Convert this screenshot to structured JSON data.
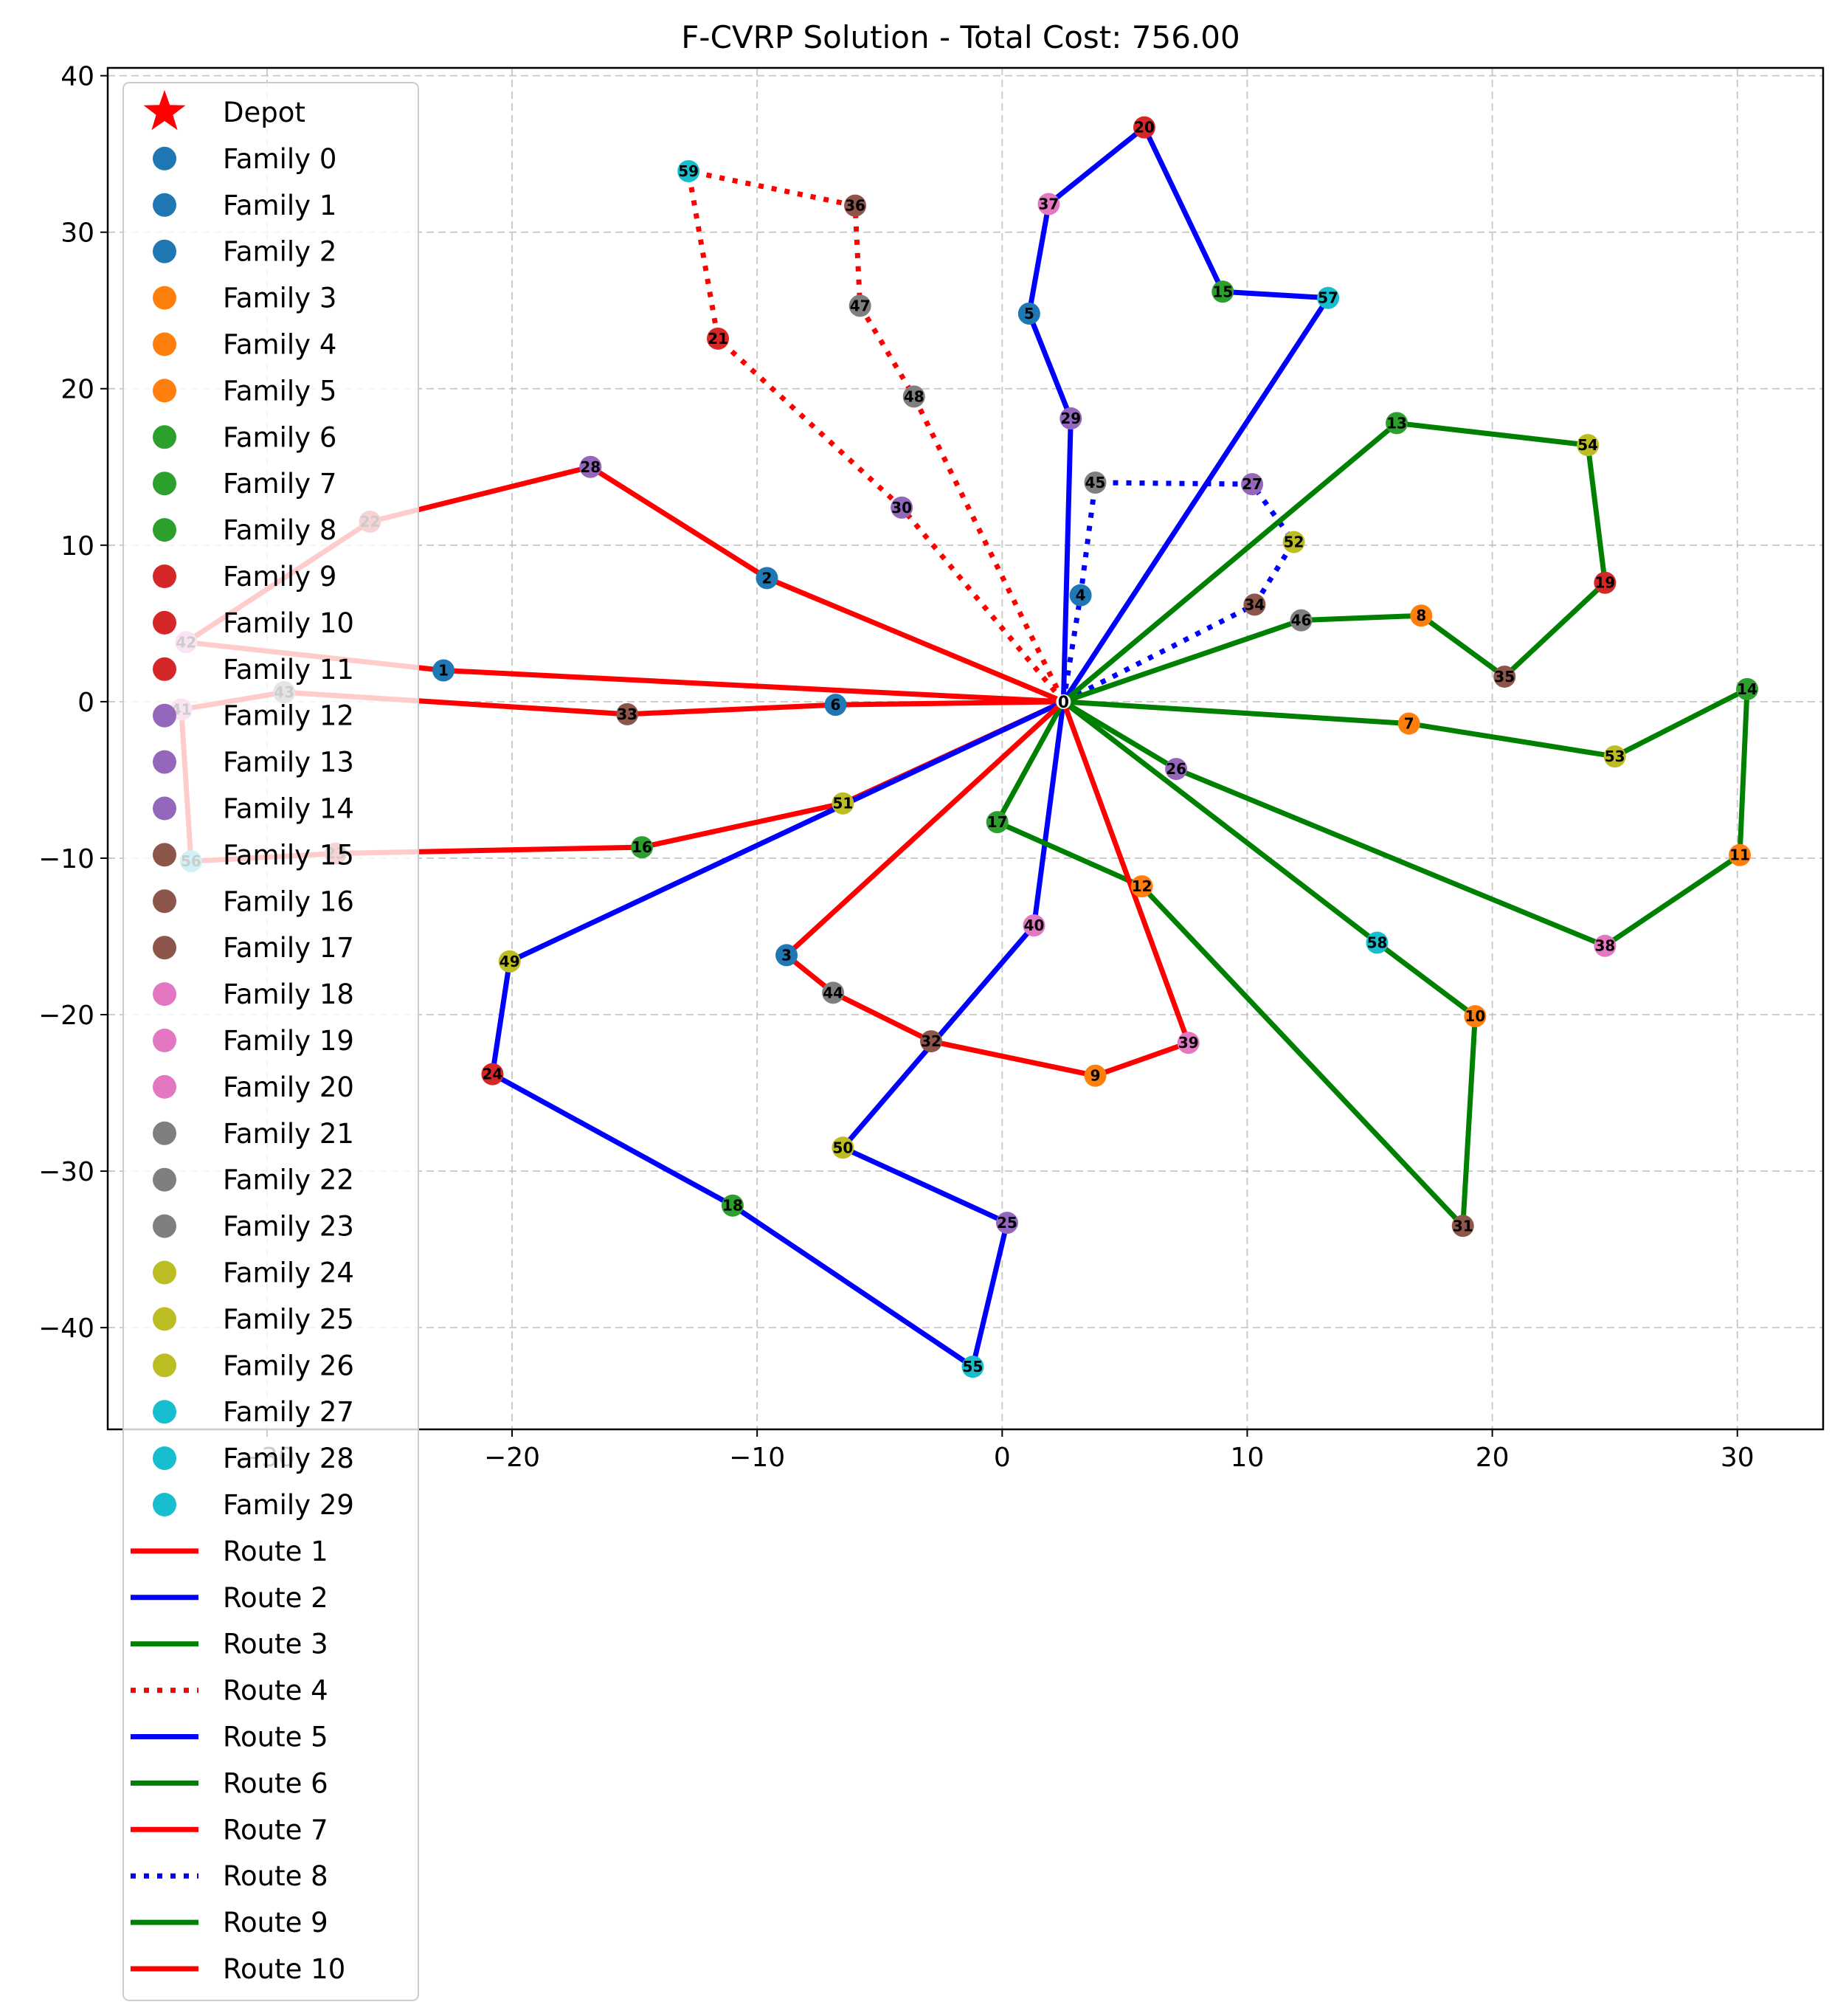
{
  "chart_data": {
    "type": "scatter",
    "title": "F-CVRP Solution - Total Cost: 756.00",
    "xlabel": "",
    "ylabel": "",
    "xlim": [
      -36.5,
      33.5
    ],
    "ylim": [
      -46.5,
      40.5
    ],
    "xticks": [
      -30,
      -20,
      -10,
      0,
      10,
      20,
      30
    ],
    "yticks": [
      -40,
      -30,
      -20,
      -10,
      0,
      10,
      20,
      30,
      40
    ],
    "tick_labels_x": [
      "−30",
      "−20",
      "−10",
      "0",
      "10",
      "20",
      "30"
    ],
    "tick_labels_y": [
      "−40",
      "−30",
      "−20",
      "−10",
      "0",
      "10",
      "20",
      "30",
      "40"
    ],
    "grid": true,
    "legend_position": "top-left",
    "depot": {
      "label": "Depot",
      "x": 2.5,
      "y": 0,
      "color": "#ff0000"
    },
    "nodes": [
      {
        "id": 1,
        "x": -22.8,
        "y": 2.0,
        "color": "#1f77b4"
      },
      {
        "id": 2,
        "x": -9.6,
        "y": 7.9,
        "color": "#1f77b4"
      },
      {
        "id": 3,
        "x": -8.8,
        "y": -16.2,
        "color": "#1f77b4"
      },
      {
        "id": 4,
        "x": 3.2,
        "y": 6.8,
        "color": "#1f77b4"
      },
      {
        "id": 5,
        "x": 1.1,
        "y": 24.8,
        "color": "#1f77b4"
      },
      {
        "id": 6,
        "x": -6.8,
        "y": -0.2,
        "color": "#1f77b4"
      },
      {
        "id": 7,
        "x": 16.6,
        "y": -1.4,
        "color": "#ff7f0e"
      },
      {
        "id": 8,
        "x": 17.1,
        "y": 5.5,
        "color": "#ff7f0e"
      },
      {
        "id": 9,
        "x": 3.8,
        "y": -23.9,
        "color": "#ff7f0e"
      },
      {
        "id": 10,
        "x": 19.3,
        "y": -20.1,
        "color": "#ff7f0e"
      },
      {
        "id": 11,
        "x": 30.1,
        "y": -9.8,
        "color": "#ff7f0e"
      },
      {
        "id": 12,
        "x": 5.7,
        "y": -11.8,
        "color": "#ff7f0e"
      },
      {
        "id": 13,
        "x": 16.1,
        "y": 17.8,
        "color": "#2ca02c"
      },
      {
        "id": 14,
        "x": 30.4,
        "y": 0.8,
        "color": "#2ca02c"
      },
      {
        "id": 15,
        "x": 9.0,
        "y": 26.2,
        "color": "#2ca02c"
      },
      {
        "id": 16,
        "x": -14.7,
        "y": -9.3,
        "color": "#2ca02c"
      },
      {
        "id": 17,
        "x": -0.2,
        "y": -7.7,
        "color": "#2ca02c"
      },
      {
        "id": 18,
        "x": -11.0,
        "y": -32.2,
        "color": "#2ca02c"
      },
      {
        "id": 19,
        "x": 24.6,
        "y": 7.6,
        "color": "#d62728"
      },
      {
        "id": 20,
        "x": 5.8,
        "y": 36.7,
        "color": "#d62728"
      },
      {
        "id": 21,
        "x": -11.6,
        "y": 23.2,
        "color": "#d62728"
      },
      {
        "id": 22,
        "x": -25.8,
        "y": 11.5,
        "color": "#d62728"
      },
      {
        "id": 23,
        "x": -27.2,
        "y": -9.7,
        "color": "#d62728"
      },
      {
        "id": 24,
        "x": -20.8,
        "y": -23.8,
        "color": "#d62728"
      },
      {
        "id": 25,
        "x": 0.2,
        "y": -33.3,
        "color": "#9467bd"
      },
      {
        "id": 26,
        "x": 7.1,
        "y": -4.3,
        "color": "#9467bd"
      },
      {
        "id": 27,
        "x": 10.2,
        "y": 13.9,
        "color": "#9467bd"
      },
      {
        "id": 28,
        "x": -16.8,
        "y": 15.0,
        "color": "#9467bd"
      },
      {
        "id": 29,
        "x": 2.8,
        "y": 18.1,
        "color": "#9467bd"
      },
      {
        "id": 30,
        "x": -4.1,
        "y": 12.4,
        "color": "#9467bd"
      },
      {
        "id": 31,
        "x": 18.8,
        "y": -33.5,
        "color": "#8c564b"
      },
      {
        "id": 32,
        "x": -2.9,
        "y": -21.7,
        "color": "#8c564b"
      },
      {
        "id": 33,
        "x": -15.3,
        "y": -0.8,
        "color": "#8c564b"
      },
      {
        "id": 34,
        "x": 10.3,
        "y": 6.2,
        "color": "#8c564b"
      },
      {
        "id": 35,
        "x": 20.5,
        "y": 1.6,
        "color": "#8c564b"
      },
      {
        "id": 36,
        "x": -6.0,
        "y": 31.7,
        "color": "#8c564b"
      },
      {
        "id": 37,
        "x": 1.9,
        "y": 31.8,
        "color": "#e377c2"
      },
      {
        "id": 38,
        "x": 24.6,
        "y": -15.6,
        "color": "#e377c2"
      },
      {
        "id": 39,
        "x": 7.6,
        "y": -21.8,
        "color": "#e377c2"
      },
      {
        "id": 40,
        "x": 1.3,
        "y": -14.3,
        "color": "#e377c2"
      },
      {
        "id": 41,
        "x": -33.5,
        "y": -0.5,
        "color": "#e377c2"
      },
      {
        "id": 42,
        "x": -33.3,
        "y": 3.8,
        "color": "#e377c2"
      },
      {
        "id": 43,
        "x": -29.3,
        "y": 0.6,
        "color": "#7f7f7f"
      },
      {
        "id": 44,
        "x": -6.9,
        "y": -18.6,
        "color": "#7f7f7f"
      },
      {
        "id": 45,
        "x": 3.8,
        "y": 14.0,
        "color": "#7f7f7f"
      },
      {
        "id": 46,
        "x": 12.2,
        "y": 5.2,
        "color": "#7f7f7f"
      },
      {
        "id": 47,
        "x": -5.8,
        "y": 25.3,
        "color": "#7f7f7f"
      },
      {
        "id": 48,
        "x": -3.6,
        "y": 19.5,
        "color": "#7f7f7f"
      },
      {
        "id": 49,
        "x": -20.1,
        "y": -16.6,
        "color": "#bcbd22"
      },
      {
        "id": 50,
        "x": -6.5,
        "y": -28.5,
        "color": "#bcbd22"
      },
      {
        "id": 51,
        "x": -6.5,
        "y": -6.5,
        "color": "#bcbd22"
      },
      {
        "id": 52,
        "x": 11.9,
        "y": 10.2,
        "color": "#bcbd22"
      },
      {
        "id": 53,
        "x": 25.0,
        "y": -3.5,
        "color": "#bcbd22"
      },
      {
        "id": 54,
        "x": 23.9,
        "y": 16.4,
        "color": "#bcbd22"
      },
      {
        "id": 55,
        "x": -1.2,
        "y": -42.5,
        "color": "#17becf"
      },
      {
        "id": 56,
        "x": -33.1,
        "y": -10.2,
        "color": "#17becf"
      },
      {
        "id": 57,
        "x": 13.3,
        "y": 25.8,
        "color": "#17becf"
      },
      {
        "id": 58,
        "x": 15.3,
        "y": -15.4,
        "color": "#17becf"
      },
      {
        "id": 59,
        "x": -12.8,
        "y": 33.9,
        "color": "#17becf"
      }
    ],
    "routes": [
      {
        "name": "Route 1",
        "color": "#ff0000",
        "style": "solid",
        "stops": [
          0,
          6,
          33,
          43,
          41,
          56,
          23,
          16,
          51,
          0
        ]
      },
      {
        "name": "Route 2",
        "color": "#0000ff",
        "style": "solid",
        "stops": [
          0,
          49,
          24,
          18,
          55,
          25,
          50,
          40,
          0
        ]
      },
      {
        "name": "Route 3",
        "color": "#008000",
        "style": "solid",
        "stops": [
          0,
          17,
          12,
          31,
          10,
          58,
          0
        ]
      },
      {
        "name": "Route 4",
        "color": "#ff0000",
        "style": "dotted",
        "stops": [
          0,
          30,
          21,
          59,
          36,
          47,
          48,
          0
        ]
      },
      {
        "name": "Route 5",
        "color": "#0000ff",
        "style": "solid",
        "stops": [
          0,
          29,
          5,
          37,
          20,
          15,
          57,
          0
        ]
      },
      {
        "name": "Route 6",
        "color": "#008000",
        "style": "solid",
        "stops": [
          0,
          26,
          38,
          11,
          14,
          53,
          7,
          0
        ]
      },
      {
        "name": "Route 7",
        "color": "#ff0000",
        "style": "solid",
        "stops": [
          0,
          3,
          44,
          32,
          9,
          39,
          0
        ]
      },
      {
        "name": "Route 8",
        "color": "#0000ff",
        "style": "dotted",
        "stops": [
          0,
          4,
          45,
          27,
          52,
          34,
          0
        ]
      },
      {
        "name": "Route 9",
        "color": "#008000",
        "style": "solid",
        "stops": [
          0,
          46,
          8,
          35,
          19,
          54,
          13,
          0
        ]
      },
      {
        "name": "Route 10",
        "color": "#ff0000",
        "style": "solid",
        "stops": [
          0,
          1,
          42,
          22,
          28,
          2,
          0
        ]
      }
    ],
    "legend": [
      {
        "label": "Depot",
        "kind": "star",
        "color": "#ff0000"
      },
      {
        "label": "Family 0",
        "kind": "dot",
        "color": "#1f77b4"
      },
      {
        "label": "Family 1",
        "kind": "dot",
        "color": "#1f77b4"
      },
      {
        "label": "Family 2",
        "kind": "dot",
        "color": "#1f77b4"
      },
      {
        "label": "Family 3",
        "kind": "dot",
        "color": "#ff7f0e"
      },
      {
        "label": "Family 4",
        "kind": "dot",
        "color": "#ff7f0e"
      },
      {
        "label": "Family 5",
        "kind": "dot",
        "color": "#ff7f0e"
      },
      {
        "label": "Family 6",
        "kind": "dot",
        "color": "#2ca02c"
      },
      {
        "label": "Family 7",
        "kind": "dot",
        "color": "#2ca02c"
      },
      {
        "label": "Family 8",
        "kind": "dot",
        "color": "#2ca02c"
      },
      {
        "label": "Family 9",
        "kind": "dot",
        "color": "#d62728"
      },
      {
        "label": "Family 10",
        "kind": "dot",
        "color": "#d62728"
      },
      {
        "label": "Family 11",
        "kind": "dot",
        "color": "#d62728"
      },
      {
        "label": "Family 12",
        "kind": "dot",
        "color": "#9467bd"
      },
      {
        "label": "Family 13",
        "kind": "dot",
        "color": "#9467bd"
      },
      {
        "label": "Family 14",
        "kind": "dot",
        "color": "#9467bd"
      },
      {
        "label": "Family 15",
        "kind": "dot",
        "color": "#8c564b"
      },
      {
        "label": "Family 16",
        "kind": "dot",
        "color": "#8c564b"
      },
      {
        "label": "Family 17",
        "kind": "dot",
        "color": "#8c564b"
      },
      {
        "label": "Family 18",
        "kind": "dot",
        "color": "#e377c2"
      },
      {
        "label": "Family 19",
        "kind": "dot",
        "color": "#e377c2"
      },
      {
        "label": "Family 20",
        "kind": "dot",
        "color": "#e377c2"
      },
      {
        "label": "Family 21",
        "kind": "dot",
        "color": "#7f7f7f"
      },
      {
        "label": "Family 22",
        "kind": "dot",
        "color": "#7f7f7f"
      },
      {
        "label": "Family 23",
        "kind": "dot",
        "color": "#7f7f7f"
      },
      {
        "label": "Family 24",
        "kind": "dot",
        "color": "#bcbd22"
      },
      {
        "label": "Family 25",
        "kind": "dot",
        "color": "#bcbd22"
      },
      {
        "label": "Family 26",
        "kind": "dot",
        "color": "#bcbd22"
      },
      {
        "label": "Family 27",
        "kind": "dot",
        "color": "#17becf"
      },
      {
        "label": "Family 28",
        "kind": "dot",
        "color": "#17becf"
      },
      {
        "label": "Family 29",
        "kind": "dot",
        "color": "#17becf"
      },
      {
        "label": "Route 1",
        "kind": "line",
        "color": "#ff0000",
        "style": "solid"
      },
      {
        "label": "Route 2",
        "kind": "line",
        "color": "#0000ff",
        "style": "solid"
      },
      {
        "label": "Route 3",
        "kind": "line",
        "color": "#008000",
        "style": "solid"
      },
      {
        "label": "Route 4",
        "kind": "line",
        "color": "#ff0000",
        "style": "dotted"
      },
      {
        "label": "Route 5",
        "kind": "line",
        "color": "#0000ff",
        "style": "solid"
      },
      {
        "label": "Route 6",
        "kind": "line",
        "color": "#008000",
        "style": "solid"
      },
      {
        "label": "Route 7",
        "kind": "line",
        "color": "#ff0000",
        "style": "solid"
      },
      {
        "label": "Route 8",
        "kind": "line",
        "color": "#0000ff",
        "style": "dotted"
      },
      {
        "label": "Route 9",
        "kind": "line",
        "color": "#008000",
        "style": "solid"
      },
      {
        "label": "Route 10",
        "kind": "line",
        "color": "#ff0000",
        "style": "solid"
      }
    ]
  }
}
